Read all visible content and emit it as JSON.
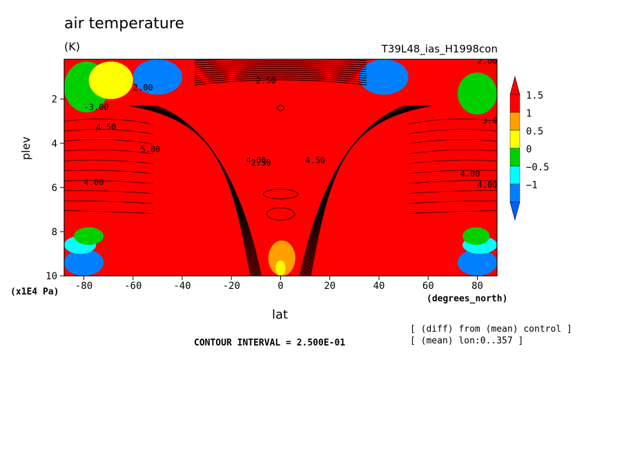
{
  "chart_data": {
    "type": "heatmap",
    "title": "air temperature",
    "units": "(K)",
    "experiment": "T39L48_ias_H1998con",
    "xlabel": "lat",
    "xunit": "(degrees_north)",
    "ylabel": "plev",
    "yunit": "(x1E4 Pa)",
    "xlim": [
      -88,
      88
    ],
    "ylim": [
      10,
      0.2
    ],
    "x_ticks": [
      "-80",
      "-60",
      "-40",
      "-20",
      "0",
      "20",
      "40",
      "60",
      "80"
    ],
    "x_tick_values": [
      -80,
      -60,
      -40,
      -20,
      0,
      20,
      40,
      60,
      80
    ],
    "y_ticks": [
      "2",
      "4",
      "6",
      "8",
      "10"
    ],
    "y_tick_values": [
      2,
      4,
      6,
      8,
      10
    ],
    "colorbar": {
      "labels": [
        "1.5",
        "1",
        "0.5",
        "0",
        "−0.5",
        "−1"
      ],
      "colors": [
        "#ff0000",
        "#ffa000",
        "#ffff00",
        "#00d000",
        "#00ffff",
        "#0080ff"
      ],
      "arrow_top_color": "#ff0000",
      "arrow_bottom_color": "#0060ff"
    },
    "contour_interval_text": "CONTOUR INTERVAL = 2.500E-01",
    "notes": [
      "[ (diff) from (mean) control ]",
      "[ (mean) lon:0..357 ]"
    ],
    "contour_labels": [
      "-3.00",
      "2.00",
      "2.50",
      "4.50",
      "5.00",
      "4.00",
      "4.00",
      "4.50",
      "4.00",
      "4.00",
      "2.50",
      "3.00",
      "2.00"
    ],
    "regions": [
      {
        "kind": "blue",
        "lat": [
          -88,
          -72
        ],
        "plev": [
          8.8,
          10
        ],
        "value": -1.2
      },
      {
        "kind": "cyan",
        "lat": [
          -88,
          -75
        ],
        "plev": [
          8.2,
          9
        ],
        "value": -0.6
      },
      {
        "kind": "green",
        "lat": [
          -84,
          -72
        ],
        "plev": [
          7.8,
          8.6
        ],
        "value": 0.2
      },
      {
        "kind": "blue",
        "lat": [
          72,
          88
        ],
        "plev": [
          8.8,
          10
        ],
        "value": -1.2
      },
      {
        "kind": "cyan",
        "lat": [
          74,
          88
        ],
        "plev": [
          8.2,
          9
        ],
        "value": -0.6
      },
      {
        "kind": "green",
        "lat": [
          74,
          85
        ],
        "plev": [
          7.8,
          8.6
        ],
        "value": 0.2
      },
      {
        "kind": "cyan",
        "lat": [
          -88,
          -76
        ],
        "plev": [
          0.8,
          2.3
        ],
        "value": -0.6
      },
      {
        "kind": "green",
        "lat": [
          -88,
          -70
        ],
        "plev": [
          0.3,
          2.6
        ],
        "value": 0.2
      },
      {
        "kind": "yellow",
        "lat": [
          -78,
          -60
        ],
        "plev": [
          0.3,
          2.0
        ],
        "value": 0.7
      },
      {
        "kind": "blue",
        "lat": [
          -60,
          -40
        ],
        "plev": [
          0.2,
          1.8
        ],
        "value": -1.2
      },
      {
        "kind": "blue",
        "lat": [
          32,
          52
        ],
        "plev": [
          0.2,
          1.8
        ],
        "value": -1.2
      },
      {
        "kind": "cyan",
        "lat": [
          80,
          88
        ],
        "plev": [
          1.3,
          2.2
        ],
        "value": -0.6
      },
      {
        "kind": "green",
        "lat": [
          72,
          88
        ],
        "plev": [
          0.8,
          2.7
        ],
        "value": 0.2
      },
      {
        "kind": "orange",
        "lat": [
          -5,
          6
        ],
        "plev": [
          8.4,
          10
        ],
        "value": 1.2
      },
      {
        "kind": "yellow",
        "lat": [
          -2,
          2
        ],
        "plev": [
          9.3,
          10
        ],
        "value": 0.7
      }
    ]
  }
}
